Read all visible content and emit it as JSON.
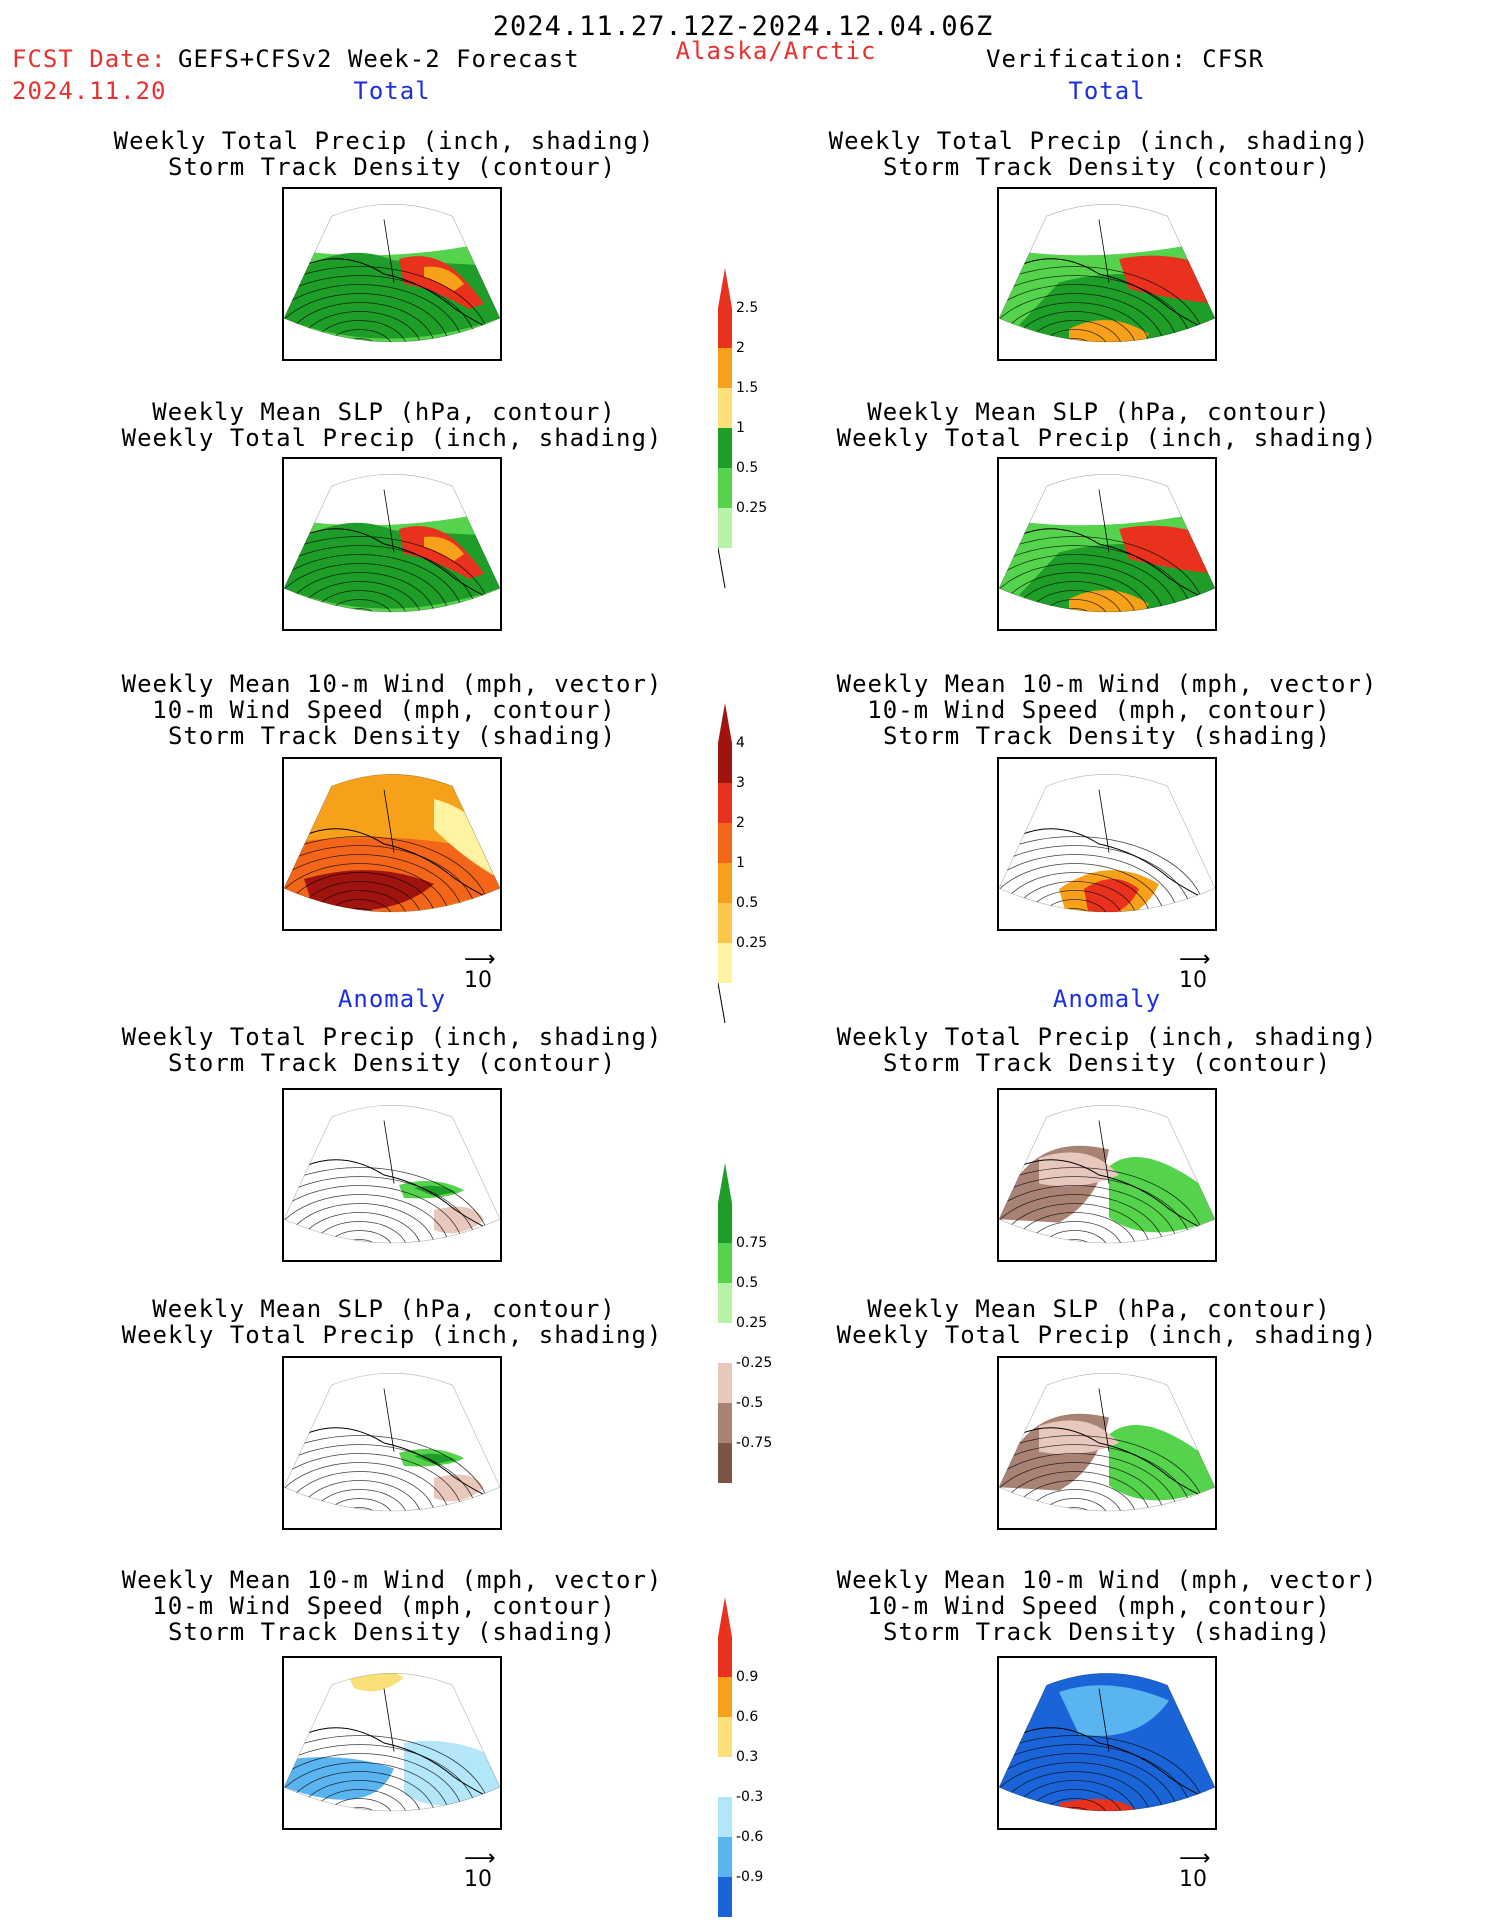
{
  "header": {
    "period": "2024.11.27.12Z-2024.12.04.06Z",
    "fcst_label": "FCST Date:",
    "fcst_model": "GEFS+CFSv2 Week-2 Forecast",
    "fcst_date": "2024.11.20",
    "region": "Alaska/Arctic",
    "verification": "Verification: CFSR"
  },
  "sections": {
    "total": "Total",
    "anomaly": "Anomaly"
  },
  "titles": {
    "precip_track": [
      "Weekly Total Precip (inch, shading)",
      "Storm Track Density (contour)"
    ],
    "slp_precip": [
      "Weekly Mean SLP (hPa, contour)",
      "Weekly Total Precip (inch, shading)"
    ],
    "wind_track": [
      "Weekly Mean 10-m Wind (mph, vector)",
      "10-m Wind Speed (mph, contour)",
      "Storm Track Density (shading)"
    ]
  },
  "vector_ref": "10",
  "colorbars": {
    "precip_total": {
      "labels": [
        "2.5",
        "2",
        "1.5",
        "1",
        "0.5",
        "0.25"
      ],
      "colors": [
        "#e8321e",
        "#f7a11a",
        "#fbe07a",
        "#1e9e28",
        "#56d34c",
        "#b6f3a8"
      ]
    },
    "track_total": {
      "labels": [
        "4",
        "3",
        "2",
        "1",
        "0.5",
        "0.25"
      ],
      "colors": [
        "#a01410",
        "#e8321e",
        "#f3661a",
        "#f7a11a",
        "#f9c54a",
        "#fdf3a0"
      ]
    },
    "precip_anom": {
      "labels": [
        "0.75",
        "0.5",
        "0.25",
        "-0.25",
        "-0.5",
        "-0.75"
      ],
      "colors": [
        "#1e9e28",
        "#56d34c",
        "#b6f3a8",
        "#e8c8bc",
        "#a98276",
        "#7a5446"
      ]
    },
    "track_anom": {
      "labels": [
        "0.9",
        "0.6",
        "0.3",
        "-0.3",
        "-0.6",
        "-0.9"
      ],
      "colors": [
        "#e8321e",
        "#f7a11a",
        "#fbe07a",
        "#b4e6fa",
        "#5ab4f0",
        "#1a64d8"
      ]
    }
  }
}
